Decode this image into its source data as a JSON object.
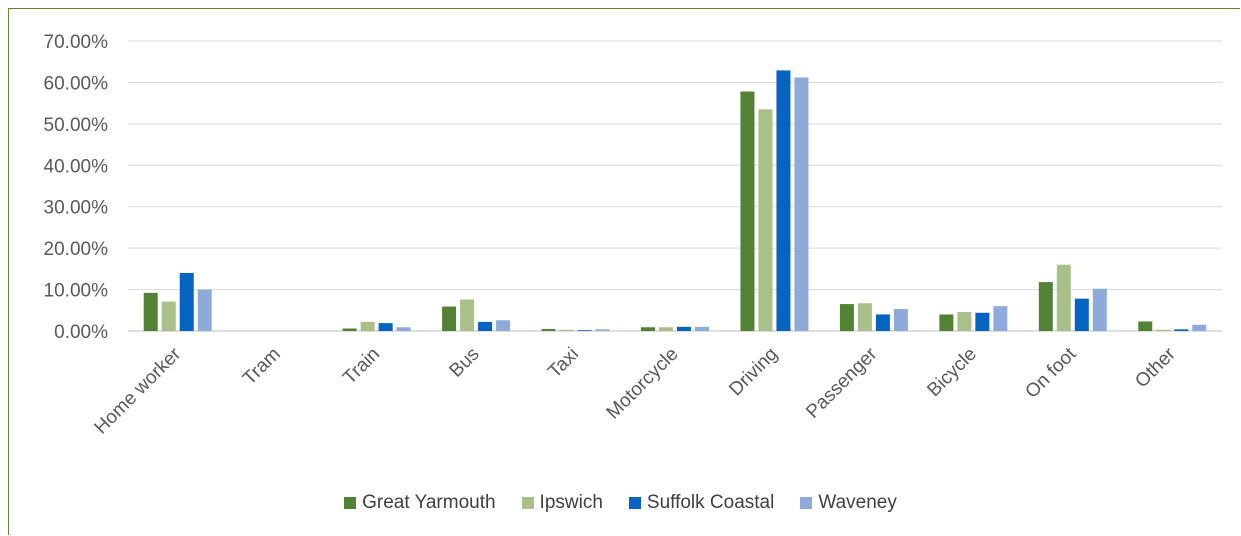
{
  "chart_data": {
    "type": "bar",
    "title": "",
    "xlabel": "",
    "ylabel": "",
    "ylim": [
      0,
      70
    ],
    "yticks": [
      "0.00%",
      "10.00%",
      "20.00%",
      "30.00%",
      "40.00%",
      "50.00%",
      "60.00%",
      "70.00%"
    ],
    "categories": [
      "Home worker",
      "Tram",
      "Train",
      "Bus",
      "Taxi",
      "Motorcycle",
      "Driving",
      "Passenger",
      "Bicycle",
      "On foot",
      "Other"
    ],
    "series": [
      {
        "name": "Great Yarmouth",
        "color": "#548235",
        "values": [
          9.2,
          0.0,
          0.6,
          5.9,
          0.5,
          0.9,
          57.8,
          6.5,
          4.0,
          11.8,
          2.3
        ]
      },
      {
        "name": "Ipswich",
        "color": "#a9c08a",
        "values": [
          7.1,
          0.0,
          2.2,
          7.6,
          0.3,
          0.9,
          53.5,
          6.7,
          4.6,
          16.0,
          0.3
        ]
      },
      {
        "name": "Suffolk Coastal",
        "color": "#0563c1",
        "values": [
          14.0,
          0.0,
          1.9,
          2.2,
          0.2,
          1.0,
          62.9,
          4.0,
          4.4,
          7.8,
          0.4
        ]
      },
      {
        "name": "Waveney",
        "color": "#8eaadb",
        "values": [
          10.0,
          0.0,
          0.9,
          2.6,
          0.4,
          1.0,
          61.2,
          5.3,
          6.0,
          10.2,
          1.5
        ]
      }
    ],
    "grid": true,
    "legend_position": "bottom"
  }
}
